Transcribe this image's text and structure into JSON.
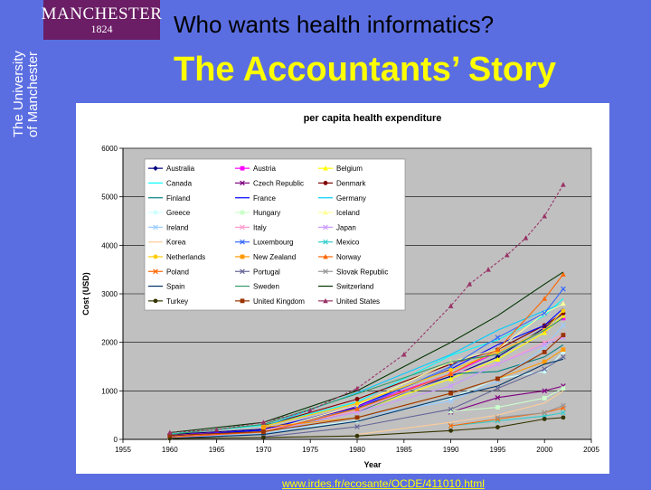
{
  "logo": {
    "name": "MANCHESTER",
    "year": "1824",
    "vertical_line1": "The University",
    "vertical_line2": "of Manchester"
  },
  "header": {
    "title": "Who wants health informatics?",
    "subtitle": "The Accountants’ Story"
  },
  "source_link": "www.irdes.fr/ecosante/OCDE/411010.html",
  "colors": {
    "background": "#5b6ee1",
    "subtitle": "#ffff00",
    "logo_bg": "#6b1d66"
  },
  "chart_data": {
    "type": "line",
    "title": "per capita health expenditure",
    "xlabel": "Year",
    "ylabel": "Cost (USD)",
    "xlim": [
      1955,
      2005
    ],
    "ylim": [
      0,
      6000
    ],
    "xticks": [
      1955,
      1960,
      1965,
      1970,
      1975,
      1980,
      1985,
      1990,
      1995,
      2000,
      2005
    ],
    "yticks": [
      0,
      1000,
      2000,
      3000,
      4000,
      5000,
      6000
    ],
    "legend_position": "top-left",
    "grid": "horizontal",
    "series": [
      {
        "name": "Australia",
        "color": "#000080",
        "marker": "diamond",
        "x": [
          1960,
          1970,
          1980,
          1990,
          1995,
          2000,
          2002
        ],
        "y": [
          100,
          210,
          660,
          1300,
          1700,
          2300,
          2600
        ]
      },
      {
        "name": "Austria",
        "color": "#ff00ff",
        "marker": "square",
        "x": [
          1960,
          1970,
          1980,
          1990,
          1995,
          2000,
          2002
        ],
        "y": [
          80,
          190,
          680,
          1350,
          1800,
          2250,
          2500
        ]
      },
      {
        "name": "Belgium",
        "color": "#ffff00",
        "marker": "triangle",
        "x": [
          1960,
          1970,
          1980,
          1990,
          1995,
          2000,
          2002
        ],
        "y": [
          60,
          150,
          580,
          1250,
          1650,
          2200,
          2550
        ]
      },
      {
        "name": "Canada",
        "color": "#00ffff",
        "marker": "none",
        "x": [
          1960,
          1970,
          1980,
          1990,
          1995,
          2000,
          2002
        ],
        "y": [
          110,
          290,
          770,
          1730,
          2050,
          2550,
          2900
        ]
      },
      {
        "name": "Czech Republic",
        "color": "#800080",
        "marker": "x",
        "x": [
          1990,
          1995,
          2000,
          2002
        ],
        "y": [
          560,
          860,
          1000,
          1100
        ]
      },
      {
        "name": "Denmark",
        "color": "#800000",
        "marker": "circle",
        "x": [
          1970,
          1980,
          1990,
          1995,
          2000,
          2002
        ],
        "y": [
          280,
          830,
          1550,
          1850,
          2350,
          2600
        ]
      },
      {
        "name": "Finland",
        "color": "#008080",
        "marker": "none",
        "x": [
          1960,
          1970,
          1980,
          1990,
          1995,
          2000,
          2002
        ],
        "y": [
          60,
          190,
          560,
          1350,
          1400,
          1700,
          1950
        ]
      },
      {
        "name": "France",
        "color": "#0000ff",
        "marker": "none",
        "x": [
          1960,
          1970,
          1980,
          1990,
          1995,
          2000,
          2002
        ],
        "y": [
          70,
          190,
          690,
          1450,
          1950,
          2350,
          2700
        ]
      },
      {
        "name": "Germany",
        "color": "#00ccff",
        "marker": "none",
        "x": [
          1970,
          1980,
          1990,
          1995,
          2000,
          2002
        ],
        "y": [
          260,
          960,
          1750,
          2250,
          2650,
          2800
        ]
      },
      {
        "name": "Greece",
        "color": "#ccffff",
        "marker": "circle",
        "x": [
          1970,
          1980,
          1990,
          1995,
          2000,
          2002
        ],
        "y": [
          160,
          380,
          850,
          1250,
          1400,
          1800
        ]
      },
      {
        "name": "Hungary",
        "color": "#ccffcc",
        "marker": "square",
        "x": [
          1990,
          1995,
          2000,
          2002
        ],
        "y": [
          580,
          660,
          850,
          1050
        ]
      },
      {
        "name": "Iceland",
        "color": "#ffff99",
        "marker": "triangle",
        "x": [
          1960,
          1970,
          1980,
          1990,
          1995,
          2000,
          2002
        ],
        "y": [
          50,
          160,
          700,
          1600,
          1850,
          2600,
          2800
        ]
      },
      {
        "name": "Ireland",
        "color": "#99ccff",
        "marker": "x",
        "x": [
          1960,
          1970,
          1980,
          1990,
          1995,
          2000,
          2002
        ],
        "y": [
          40,
          110,
          460,
          790,
          1200,
          1900,
          2350
        ]
      },
      {
        "name": "Italy",
        "color": "#ff99cc",
        "marker": "x",
        "x": [
          1970,
          1980,
          1990,
          1995,
          2000,
          2002
        ],
        "y": [
          190,
          580,
          1350,
          1550,
          2000,
          2150
        ]
      },
      {
        "name": "Japan",
        "color": "#cc99ff",
        "marker": "x",
        "x": [
          1960,
          1970,
          1980,
          1990,
          1995,
          2000,
          2002
        ],
        "y": [
          30,
          150,
          560,
          1100,
          1550,
          1950,
          2100
        ]
      },
      {
        "name": "Korea",
        "color": "#ffcc99",
        "marker": "none",
        "x": [
          1980,
          1990,
          1995,
          2000,
          2002
        ],
        "y": [
          100,
          350,
          500,
          750,
          1000
        ]
      },
      {
        "name": "Luxembourg",
        "color": "#3366ff",
        "marker": "x",
        "x": [
          1970,
          1980,
          1990,
          1995,
          2000,
          2002
        ],
        "y": [
          150,
          640,
          1500,
          2100,
          2600,
          3100
        ]
      },
      {
        "name": "Mexico",
        "color": "#33cccc",
        "marker": "x",
        "x": [
          1990,
          1995,
          2000,
          2002
        ],
        "y": [
          280,
          380,
          480,
          550
        ]
      },
      {
        "name": "Netherlands",
        "color": "#ffcc00",
        "marker": "circle",
        "x": [
          1970,
          1980,
          1990,
          1995,
          2000,
          2002
        ],
        "y": [
          270,
          740,
          1430,
          1800,
          2250,
          2650
        ]
      },
      {
        "name": "New Zealand",
        "color": "#ff9900",
        "marker": "square",
        "x": [
          1970,
          1980,
          1990,
          1995,
          2000,
          2002
        ],
        "y": [
          250,
          450,
          950,
          1250,
          1600,
          1850
        ]
      },
      {
        "name": "Norway",
        "color": "#ff6600",
        "marker": "triangle",
        "x": [
          1960,
          1970,
          1980,
          1990,
          1995,
          2000,
          2002
        ],
        "y": [
          50,
          150,
          630,
          1350,
          1850,
          2900,
          3400
        ]
      },
      {
        "name": "Poland",
        "color": "#ff6600",
        "marker": "x",
        "x": [
          1990,
          1995,
          2000,
          2002
        ],
        "y": [
          280,
          420,
          550,
          650
        ]
      },
      {
        "name": "Portugal",
        "color": "#666699",
        "marker": "x",
        "x": [
          1970,
          1980,
          1990,
          1995,
          2000,
          2002
        ],
        "y": [
          50,
          260,
          620,
          1050,
          1450,
          1700
        ]
      },
      {
        "name": "Slovak Republic",
        "color": "#969696",
        "marker": "x",
        "x": [
          1995,
          2000,
          2002
        ],
        "y": [
          450,
          550,
          700
        ]
      },
      {
        "name": "Spain",
        "color": "#003366",
        "marker": "none",
        "x": [
          1960,
          1970,
          1980,
          1990,
          1995,
          2000,
          2002
        ],
        "y": [
          20,
          100,
          370,
          870,
          1100,
          1550,
          1650
        ]
      },
      {
        "name": "Sweden",
        "color": "#339966",
        "marker": "none",
        "x": [
          1960,
          1970,
          1980,
          1990,
          1995,
          2000,
          2002
        ],
        "y": [
          100,
          310,
          940,
          1600,
          1750,
          2250,
          2500
        ]
      },
      {
        "name": "Switzerland",
        "color": "#003300",
        "marker": "none",
        "x": [
          1960,
          1970,
          1980,
          1990,
          1995,
          2000,
          2002
        ],
        "y": [
          140,
          350,
          1000,
          2000,
          2550,
          3200,
          3450
        ]
      },
      {
        "name": "Turkey",
        "color": "#333300",
        "marker": "circle",
        "x": [
          1960,
          1970,
          1980,
          1990,
          1995,
          2000,
          2002
        ],
        "y": [
          20,
          40,
          70,
          180,
          250,
          420,
          450
        ]
      },
      {
        "name": "United Kingdom",
        "color": "#993300",
        "marker": "square",
        "x": [
          1960,
          1970,
          1980,
          1990,
          1995,
          2000,
          2002
        ],
        "y": [
          80,
          160,
          450,
          950,
          1250,
          1800,
          2150
        ]
      },
      {
        "name": "United States",
        "color": "#993366",
        "marker": "triangle",
        "x": [
          1960,
          1965,
          1970,
          1975,
          1980,
          1985,
          1990,
          1992,
          1994,
          1996,
          1998,
          2000,
          2002
        ],
        "y": [
          140,
          200,
          350,
          600,
          1050,
          1750,
          2750,
          3200,
          3500,
          3800,
          4150,
          4600,
          5250
        ]
      }
    ]
  }
}
